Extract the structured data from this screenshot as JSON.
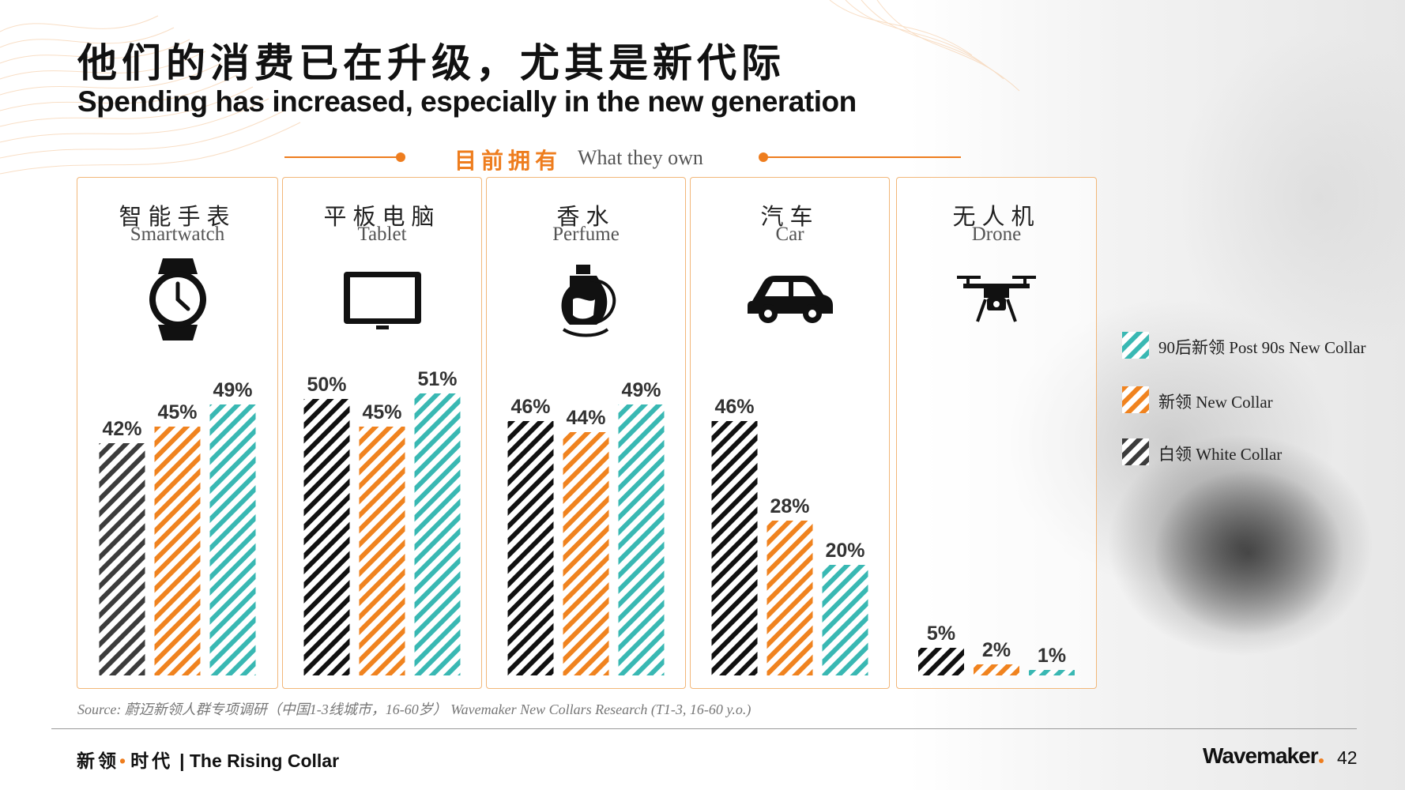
{
  "title_cn": "他们的消费已在升级，尤其是新代际",
  "title_en": "Spending has increased, especially in the new generation",
  "subtitle": {
    "cn": "目前拥有",
    "en": "What they own"
  },
  "colors": {
    "accent": "#ee7d1e",
    "white_collar": "#3c3c3c",
    "new_collar": "#f0831f",
    "post90": "#39b8b3",
    "panel_border": "#f2b779"
  },
  "chart_data": {
    "type": "bar",
    "title": "目前拥有 What they own",
    "categories": [
      {
        "cn": "智能手表",
        "en": "Smartwatch",
        "icon": "watch-icon"
      },
      {
        "cn": "平板电脑",
        "en": "Tablet",
        "icon": "tablet-icon"
      },
      {
        "cn": "香水",
        "en": "Perfume",
        "icon": "perfume-icon"
      },
      {
        "cn": "汽车",
        "en": "Car",
        "icon": "car-icon"
      },
      {
        "cn": "无人机",
        "en": "Drone",
        "icon": "drone-icon"
      }
    ],
    "series": [
      {
        "key": "white_collar",
        "name": "白领 White Collar",
        "values": [
          42,
          50,
          46,
          46,
          5
        ],
        "labels": [
          "42%",
          "50%",
          "46%",
          "46%",
          "5%"
        ]
      },
      {
        "key": "new_collar",
        "name": "新领 New Collar",
        "values": [
          45,
          45,
          44,
          28,
          2
        ],
        "labels": [
          "45%",
          "45%",
          "44%",
          "28%",
          "2%"
        ]
      },
      {
        "key": "post90",
        "name": "90后新领 Post 90s New Collar",
        "values": [
          49,
          51,
          49,
          20,
          1
        ],
        "labels": [
          "49%",
          "51%",
          "49%",
          "20%",
          "1%"
        ]
      }
    ],
    "ylim": [
      0,
      100
    ],
    "legend": [
      {
        "key": "post90",
        "label": "90后新领 Post 90s New Collar"
      },
      {
        "key": "new_collar",
        "label": "新领 New Collar"
      },
      {
        "key": "white_collar",
        "label": "白领 White Collar"
      }
    ],
    "legend_position": "right"
  },
  "source": "Source: 蔚迈新领人群专项调研（中国1-3线城市，16-60岁） Wavemaker New Collars Research (T1-3, 16-60 y.o.)",
  "footer": {
    "cn": "新领",
    "dot": "•",
    "cn2": "时代",
    "en": "| The Rising Collar",
    "brand": "Wavemaker",
    "page": "42"
  }
}
